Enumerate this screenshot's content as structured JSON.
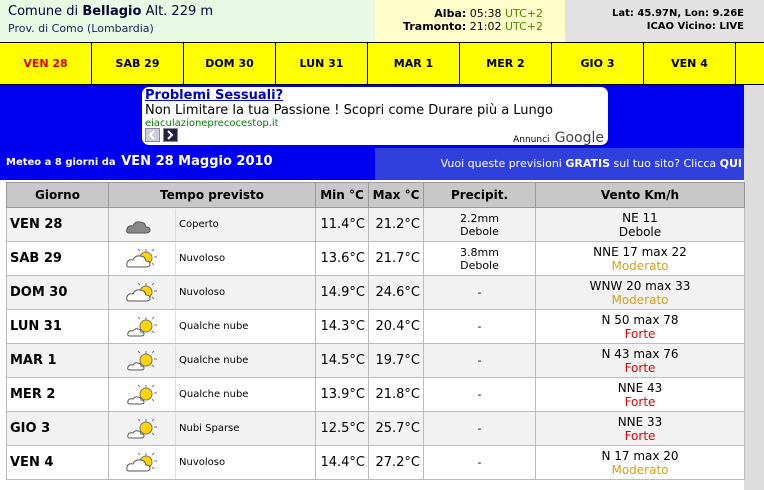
{
  "header": {
    "comune_label": "Comune di",
    "comune": "Bellagio",
    "altitude": "Alt. 229 m",
    "provincia": "Prov. di Como (Lombardia)",
    "alba_label": "Alba:",
    "alba": "05:38",
    "alba_tz": "UTC+2",
    "tramonto_label": "Tramonto:",
    "tramonto": "21:02",
    "tramonto_tz": "UTC+2",
    "coords": "Lat: 45.97N, Lon: 9.26E",
    "icao": "ICAO Vicino: LIVE"
  },
  "tabs": [
    "VEN 28",
    "SAB 29",
    "DOM 30",
    "LUN 31",
    "MAR 1",
    "MER 2",
    "GIO 3",
    "VEN 4"
  ],
  "ad": {
    "title": "Problemi Sessuali?",
    "text": "Non Limitare la tua Passione ! Scopri come Durare più a Lungo",
    "url": "eiaculazioneprecocestop.it",
    "footer": "Annunci",
    "brand": "Google"
  },
  "forecast": {
    "intro": "Meteo a 8 giorni da",
    "date": "VEN 28 Maggio 2010",
    "promo": "Vuoi queste previsioni",
    "promo_bold": "GRATIS",
    "promo_rest": "sul tuo sito? Clicca",
    "promo_link": "QUI"
  },
  "table": {
    "headers": [
      "Giorno",
      "Tempo previsto",
      "Min °C",
      "Max °C",
      "Precipit.",
      "Vento Km/h"
    ],
    "rows": [
      {
        "day": "VEN 28",
        "sky": "Coperto",
        "min": "11.4°C",
        "max": "21.2°C",
        "precip": [
          "2.2mm",
          "Debole"
        ],
        "wind": "NE 11",
        "wind_level": "Debole"
      },
      {
        "day": "SAB 29",
        "sky": "Nuvoloso",
        "min": "13.6°C",
        "max": "21.7°C",
        "precip": [
          "3.8mm",
          "Debole"
        ],
        "wind": "NNE 17 max 22",
        "wind_level": "Moderato"
      },
      {
        "day": "DOM 30",
        "sky": "Nuvoloso",
        "min": "14.9°C",
        "max": "24.6°C",
        "precip": [
          "-"
        ],
        "wind": "WNW 20 max 33",
        "wind_level": "Moderato"
      },
      {
        "day": "LUN 31",
        "sky": "Qualche nube",
        "min": "14.3°C",
        "max": "20.4°C",
        "precip": [
          "-"
        ],
        "wind": "N 50 max 78",
        "wind_level": "Forte"
      },
      {
        "day": "MAR 1",
        "sky": "Qualche nube",
        "min": "14.5°C",
        "max": "19.7°C",
        "precip": [
          "-"
        ],
        "wind": "N 43 max 76",
        "wind_level": "Forte"
      },
      {
        "day": "MER 2",
        "sky": "Qualche nube",
        "min": "13.9°C",
        "max": "21.8°C",
        "precip": [
          "-"
        ],
        "wind": "NNE 43",
        "wind_level": "Forte"
      },
      {
        "day": "GIO 3",
        "sky": "Nubi Sparse",
        "min": "12.5°C",
        "max": "25.7°C",
        "precip": [
          "-"
        ],
        "wind": "NNE 33",
        "wind_level": "Forte"
      },
      {
        "day": "VEN 4",
        "sky": "Nuvoloso",
        "min": "14.4°C",
        "max": "27.2°C",
        "precip": [
          "-"
        ],
        "wind": "N 17 max 20",
        "wind_level": "Moderato"
      }
    ]
  }
}
